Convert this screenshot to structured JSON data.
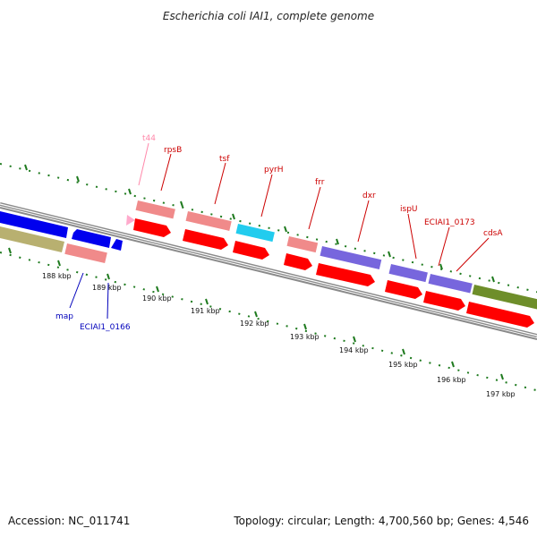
{
  "title": "Escherichia coli IAI1, complete genome",
  "footer": {
    "accession": "Accession: NC_011741",
    "topology": "Topology: circular; Length: 4,700,560 bp; Genes: 4,546"
  },
  "colors": {
    "backbone": "#8a8a8a",
    "tick": "#1e7a1e",
    "red_arrow": "#ff0000",
    "pink_box": "#f08a8a",
    "blue_gene": "#0000ee",
    "olive_gene": "#b8b070",
    "cyan_gene": "#22ccee",
    "purple_gene": "#7766dd",
    "green_gene": "#6e8e2a",
    "trna_pink": "#ffaacc",
    "label_red": "#cc0000",
    "label_blue": "#0000bb",
    "label_pink": "#ff88aa"
  },
  "ticks": [
    {
      "label": "188 kbp"
    },
    {
      "label": "189 kbp"
    },
    {
      "label": "190 kbp"
    },
    {
      "label": "191 kbp"
    },
    {
      "label": "192 kbp"
    },
    {
      "label": "193 kbp"
    },
    {
      "label": "194 kbp"
    },
    {
      "label": "195 kbp"
    },
    {
      "label": "196 kbp"
    },
    {
      "label": "197 kbp"
    }
  ],
  "gene_labels": [
    {
      "name": "t44",
      "color": "label_pink"
    },
    {
      "name": "rpsB",
      "color": "label_red"
    },
    {
      "name": "tsf",
      "color": "label_red"
    },
    {
      "name": "pyrH",
      "color": "label_red"
    },
    {
      "name": "frr",
      "color": "label_red"
    },
    {
      "name": "dxr",
      "color": "label_red"
    },
    {
      "name": "ispU",
      "color": "label_red"
    },
    {
      "name": "ECIAI1_0173",
      "color": "label_red"
    },
    {
      "name": "cdsA",
      "color": "label_red"
    },
    {
      "name": "map",
      "color": "label_blue"
    },
    {
      "name": "ECIAI1_0166",
      "color": "label_blue"
    }
  ]
}
